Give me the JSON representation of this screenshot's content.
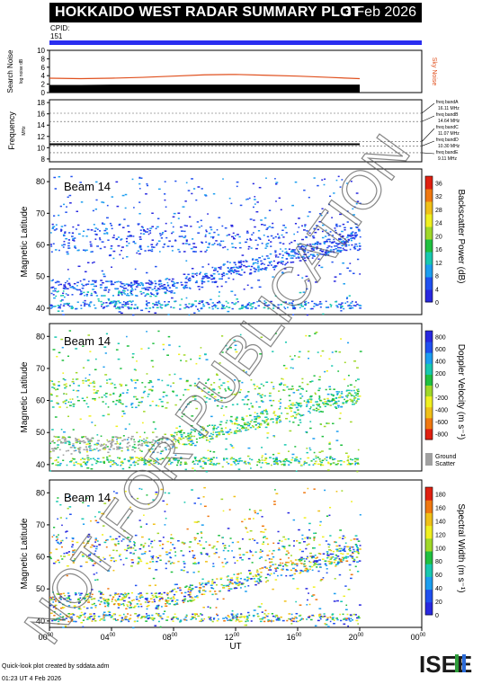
{
  "header": {
    "title": "HOKKAIDO WEST RADAR SUMMARY PLOT",
    "date": "3 Feb 2026",
    "cpid_label": "CPID:",
    "cpid_value": "151"
  },
  "footer": {
    "credit": "Quick-look plot created by sddata.adm",
    "timestamp": "01:23 UT  4 Feb 2026",
    "logo_text": "ISEE"
  },
  "watermark": "NOT FOR PUBLICATION",
  "colors": {
    "blue_bar": "#2a2ef0",
    "sky_noise": "#e0501e",
    "ground_scatter": "#a0a0a0"
  },
  "chart_data": [
    {
      "type": "area",
      "panel": "search-noise",
      "ylabel": "Search Noise",
      "ylabel_sub": "log noise dB",
      "yticks": [
        0,
        2,
        4,
        6,
        8,
        10
      ],
      "ylim": [
        0,
        10
      ],
      "legend": "Sky Noise",
      "x": [
        0,
        2,
        4,
        6,
        8,
        10,
        12,
        14,
        16,
        18,
        20
      ],
      "search_noise": [
        1.8,
        1.8,
        1.9,
        1.9,
        1.9,
        1.9,
        1.9,
        1.9,
        1.9,
        1.9,
        1.9
      ],
      "sky_noise": [
        3.4,
        3.3,
        3.4,
        3.6,
        3.9,
        4.2,
        4.3,
        4.1,
        3.9,
        3.6,
        3.3
      ]
    },
    {
      "type": "line",
      "panel": "frequency",
      "ylabel": "Frequency",
      "ylabel_sub": "MHz",
      "yticks": [
        8,
        10,
        12,
        14,
        16,
        18
      ],
      "ylim": [
        7.5,
        18.5
      ],
      "x": [
        0,
        20
      ],
      "frequency": [
        10.6,
        10.6
      ],
      "bands": [
        {
          "label": "freq bandA",
          "value": "16.11 MHz",
          "mhz": 16.11
        },
        {
          "label": "freq bandB",
          "value": "14.64 MHz",
          "mhz": 14.64
        },
        {
          "label": "freq bandC",
          "value": "11.07 MHz",
          "mhz": 11.07
        },
        {
          "label": "freq bandD",
          "value": "10.30 MHz",
          "mhz": 10.3
        },
        {
          "label": "freq bandE",
          "value": "9.11 MHz",
          "mhz": 9.11
        }
      ]
    },
    {
      "type": "heatmap",
      "panel": "power",
      "beam_label": "Beam 14",
      "ylabel": "Magnetic Latitude",
      "yticks": [
        40,
        50,
        60,
        70,
        80
      ],
      "ylim": [
        38,
        84
      ],
      "colorbar_label": "Backscatter Power (dB)",
      "colorbar_ticks": [
        0,
        4,
        8,
        12,
        16,
        20,
        24,
        28,
        32,
        36
      ],
      "colorbar_range": [
        0,
        38
      ]
    },
    {
      "type": "heatmap",
      "panel": "velocity",
      "beam_label": "Beam 14",
      "ylabel": "Magnetic Latitude",
      "yticks": [
        40,
        50,
        60,
        70,
        80
      ],
      "ylim": [
        38,
        84
      ],
      "colorbar_label": "Doppler Velocity (m s⁻¹)",
      "colorbar_ticks": [
        800,
        600,
        400,
        200,
        0,
        -200,
        -400,
        -600,
        -800
      ],
      "colorbar_range": [
        -900,
        900
      ],
      "ground_scatter_label": [
        "Ground",
        "Scatter"
      ]
    },
    {
      "type": "heatmap",
      "panel": "width",
      "beam_label": "Beam 14",
      "ylabel": "Magnetic Latitude",
      "yticks": [
        40,
        50,
        60,
        70,
        80
      ],
      "ylim": [
        38,
        84
      ],
      "colorbar_label": "Spectral Width (m s⁻¹)",
      "colorbar_ticks": [
        0,
        20,
        40,
        60,
        80,
        100,
        120,
        140,
        160,
        180
      ],
      "colorbar_range": [
        0,
        190
      ],
      "xlabel": "UT",
      "xticks": [
        "00",
        "04",
        "08",
        "12",
        "16",
        "20",
        "00"
      ],
      "xtick_sup": "00",
      "xlim": [
        0,
        24
      ],
      "data_end_hour": 20
    }
  ]
}
